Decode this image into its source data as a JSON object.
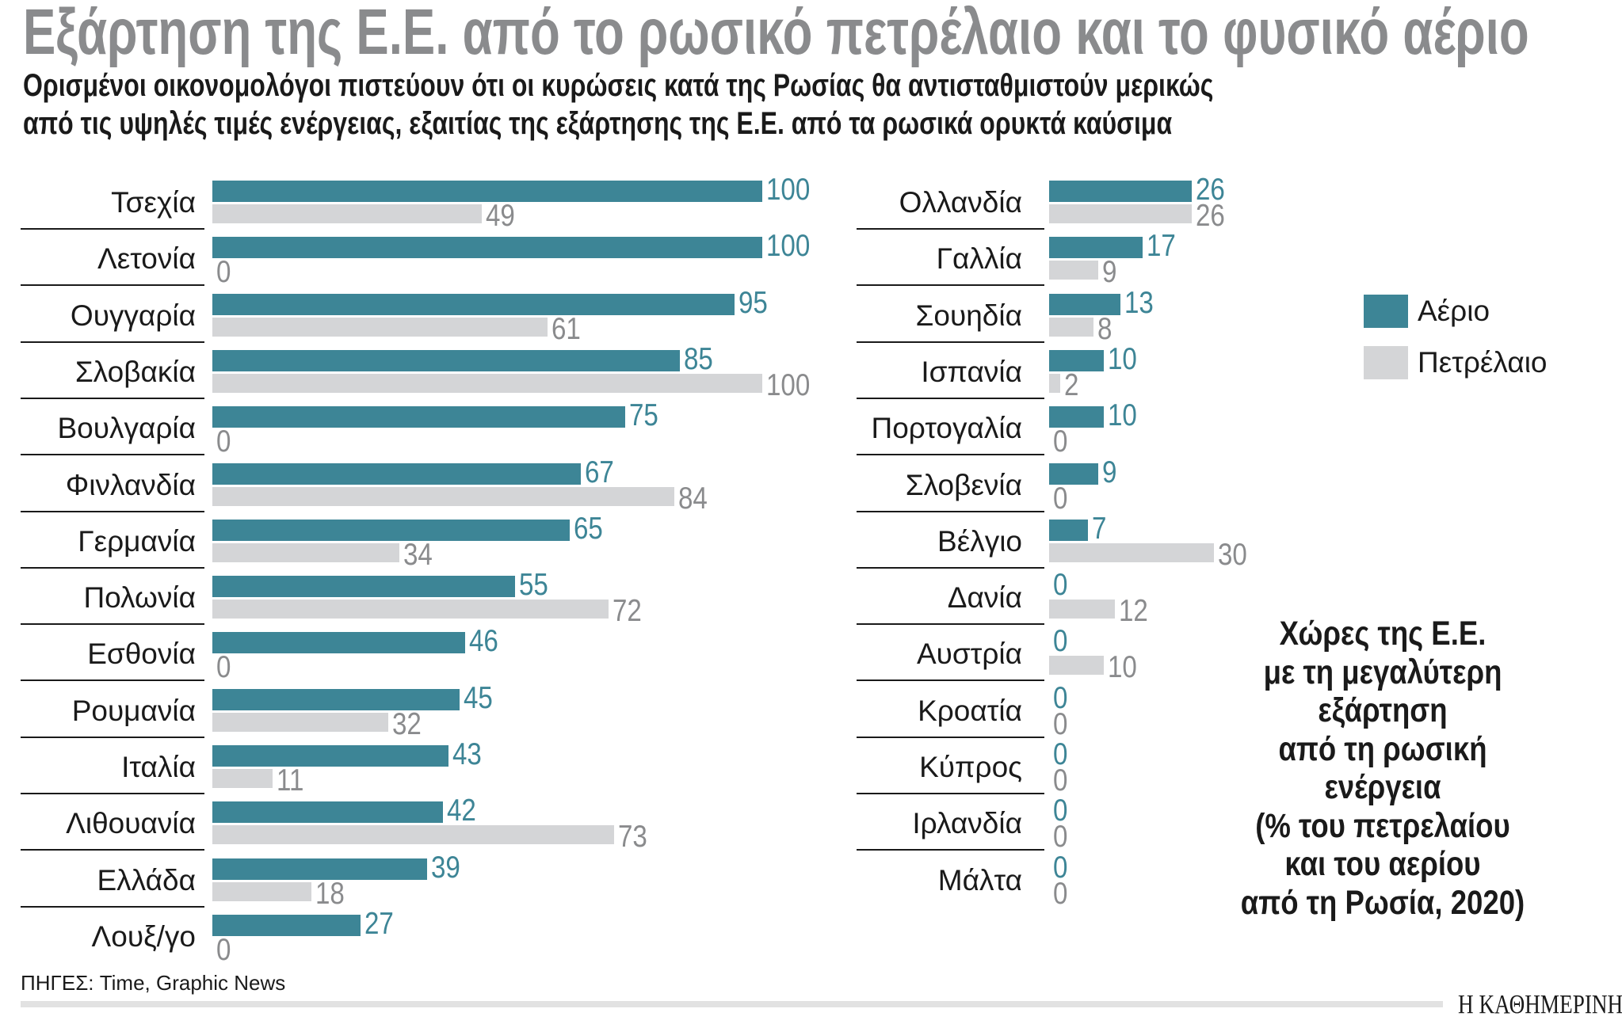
{
  "title": "Εξάρτηση της Ε.Ε. από το ρωσικό πετρέλαιο και το φυσικό αέριο",
  "subtitle": [
    "Ορισμένοι οικονομολόγοι πιστεύουν ότι οι κυρώσεις κατά της Ρωσίας θα αντισταθμιστούν μερικώς",
    "από τις υψηλές τιμές ενέργειας, εξαιτίας της εξάρτησης της Ε.Ε. από τα ρωσικά ορυκτά καύσιμα"
  ],
  "note": [
    "Χώρες της Ε.Ε.",
    "με τη μεγαλύτερη",
    "εξάρτηση",
    "από τη ρωσική ενέργεια",
    "(% του πετρελαίου",
    "και του αερίου",
    "από τη Ρωσία, 2020)"
  ],
  "source": "ΠΗΓΕΣ: Time, Graphic News",
  "logo": "Η ΚΑΘΗΜΕΡΙΝΗ",
  "colors": {
    "gas": "#3d8596",
    "oil": "#d4d5d7",
    "title": "#8a8b8d"
  },
  "chart_data": {
    "type": "bar",
    "orientation": "horizontal",
    "unit": "%",
    "xlim": [
      0,
      100
    ],
    "legend": {
      "placement": "right",
      "entries": [
        "Αέριο",
        "Πετρέλαιο"
      ]
    },
    "panels": [
      {
        "categories": [
          "Τσεχία",
          "Λετονία",
          "Ουγγαρία",
          "Σλοβακία",
          "Βουλγαρία",
          "Φινλανδία",
          "Γερμανία",
          "Πολωνία",
          "Εσθονία",
          "Ρουμανία",
          "Ιταλία",
          "Λιθουανία",
          "Ελλάδα",
          "Λουξ/γο"
        ],
        "series": [
          {
            "name": "Αέριο",
            "values": [
              100,
              100,
              95,
              85,
              75,
              67,
              65,
              55,
              46,
              45,
              43,
              42,
              39,
              27
            ]
          },
          {
            "name": "Πετρέλαιο",
            "values": [
              49,
              0,
              61,
              100,
              0,
              84,
              34,
              72,
              0,
              32,
              11,
              73,
              18,
              0
            ]
          }
        ]
      },
      {
        "categories": [
          "Ολλανδία",
          "Γαλλία",
          "Σουηδία",
          "Ισπανία",
          "Πορτογαλία",
          "Σλοβενία",
          "Βέλγιο",
          "Δανία",
          "Αυστρία",
          "Κροατία",
          "Κύπρος",
          "Ιρλανδία",
          "Μάλτα"
        ],
        "series": [
          {
            "name": "Αέριο",
            "values": [
              26,
              17,
              13,
              10,
              10,
              9,
              7,
              0,
              0,
              0,
              0,
              0,
              0
            ]
          },
          {
            "name": "Πετρέλαιο",
            "values": [
              26,
              9,
              8,
              2,
              0,
              0,
              30,
              12,
              10,
              0,
              0,
              0,
              0
            ]
          }
        ]
      }
    ]
  }
}
